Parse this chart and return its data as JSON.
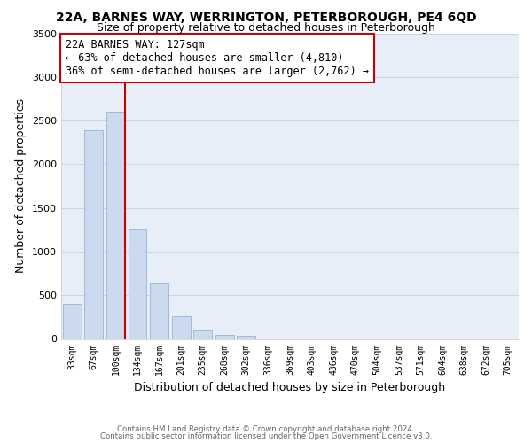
{
  "title": "22A, BARNES WAY, WERRINGTON, PETERBOROUGH, PE4 6QD",
  "subtitle": "Size of property relative to detached houses in Peterborough",
  "xlabel": "Distribution of detached houses by size in Peterborough",
  "ylabel": "Number of detached properties",
  "bar_labels": [
    "33sqm",
    "67sqm",
    "100sqm",
    "134sqm",
    "167sqm",
    "201sqm",
    "235sqm",
    "268sqm",
    "302sqm",
    "336sqm",
    "369sqm",
    "403sqm",
    "436sqm",
    "470sqm",
    "504sqm",
    "537sqm",
    "571sqm",
    "604sqm",
    "638sqm",
    "672sqm",
    "705sqm"
  ],
  "bar_values": [
    400,
    2390,
    2600,
    1250,
    640,
    260,
    100,
    50,
    35,
    0,
    0,
    0,
    0,
    0,
    0,
    0,
    0,
    0,
    0,
    0,
    0
  ],
  "bar_color": "#ccdaf0",
  "bar_edge_color": "#a0bbda",
  "vline_color": "#cc0000",
  "annotation_text": "22A BARNES WAY: 127sqm\n← 63% of detached houses are smaller (4,810)\n36% of semi-detached houses are larger (2,762) →",
  "annotation_box_color": "#ffffff",
  "annotation_box_edgecolor": "#cc0000",
  "ylim": [
    0,
    3500
  ],
  "yticks": [
    0,
    500,
    1000,
    1500,
    2000,
    2500,
    3000,
    3500
  ],
  "footer_line1": "Contains HM Land Registry data © Crown copyright and database right 2024.",
  "footer_line2": "Contains public sector information licensed under the Open Government Licence v3.0.",
  "background_color": "#ffffff",
  "plot_bg_color": "#e8eef8",
  "grid_color": "#c8d4e8",
  "title_fontsize": 10,
  "subtitle_fontsize": 9,
  "xlabel_fontsize": 9,
  "ylabel_fontsize": 9,
  "annotation_fontsize": 8.5
}
